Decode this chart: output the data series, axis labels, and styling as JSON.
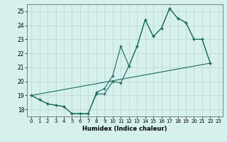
{
  "xlabel": "Humidex (Indice chaleur)",
  "bg_color": "#d6f0ee",
  "line_color": "#1a6b5a",
  "grid_color": "#b8d4d0",
  "xlim": [
    -0.5,
    23.5
  ],
  "ylim": [
    17.5,
    25.5
  ],
  "yticks": [
    18,
    19,
    20,
    21,
    22,
    23,
    24,
    25
  ],
  "xticks": [
    0,
    1,
    2,
    3,
    4,
    5,
    6,
    7,
    8,
    9,
    10,
    11,
    12,
    13,
    14,
    15,
    16,
    17,
    18,
    19,
    20,
    21,
    22,
    23
  ],
  "series1_x": [
    0,
    1,
    2,
    3,
    4,
    5,
    6,
    7,
    8,
    9,
    10,
    11,
    12,
    13,
    14,
    15,
    16,
    17,
    18,
    19,
    20,
    21,
    22
  ],
  "series1_y": [
    19.0,
    18.7,
    18.4,
    18.3,
    18.2,
    17.7,
    17.7,
    17.7,
    19.1,
    19.1,
    20.0,
    19.9,
    21.1,
    22.5,
    24.4,
    23.2,
    23.8,
    25.2,
    24.5,
    24.2,
    23.0,
    23.0,
    21.3
  ],
  "series2_x": [
    0,
    1,
    2,
    3,
    4,
    5,
    6,
    7,
    8,
    9,
    10,
    11,
    12,
    13,
    14,
    15,
    16,
    17,
    18,
    19,
    20,
    21,
    22
  ],
  "series2_y": [
    19.0,
    18.7,
    18.4,
    18.3,
    18.2,
    17.7,
    17.7,
    17.7,
    19.2,
    19.5,
    20.4,
    22.5,
    21.1,
    22.5,
    24.4,
    23.2,
    23.8,
    25.2,
    24.5,
    24.2,
    23.0,
    23.0,
    21.3
  ],
  "series3_x": [
    0,
    22
  ],
  "series3_y": [
    19.0,
    21.3
  ]
}
